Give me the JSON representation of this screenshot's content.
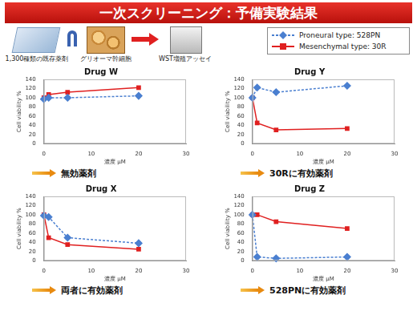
{
  "header": {
    "title": "一次スクリーニング：予備実験結果"
  },
  "flow": [
    "1,300種類の既存薬剤",
    "グリオーマ幹細胞",
    "WST増殖アッセイ"
  ],
  "chart_data": [
    {
      "type": "line",
      "title": "Drug W",
      "x_label": "濃度 μM",
      "y_label": "Cell viability %",
      "x": [
        0,
        1,
        5,
        20
      ],
      "series": [
        {
          "name": "Proneural type: 528PN",
          "color": "#4a7fd0",
          "marker": "diamond",
          "line_style": "dashed",
          "values": [
            97,
            100,
            100,
            104
          ]
        },
        {
          "name": "Mesenchymal type: 30R",
          "color": "#e02020",
          "marker": "square",
          "line_style": "solid",
          "values": [
            100,
            107,
            112,
            122
          ]
        }
      ],
      "xlim": [
        0,
        30
      ],
      "xticks": [
        0,
        10,
        20,
        30
      ],
      "ylim": [
        0,
        140
      ],
      "yticks": [
        0,
        20,
        40,
        60,
        80,
        100,
        120,
        140
      ],
      "grid": false,
      "annotations": [
        "無効薬剤"
      ]
    },
    {
      "type": "line",
      "title": "Drug Y",
      "x_label": "濃度 μM",
      "y_label": "Cell viability %",
      "x": [
        0,
        1,
        5,
        20
      ],
      "series": [
        {
          "name": "Proneural type: 528PN",
          "color": "#4a7fd0",
          "marker": "diamond",
          "line_style": "dashed",
          "values": [
            100,
            122,
            112,
            126
          ]
        },
        {
          "name": "Mesenchymal type: 30R",
          "color": "#e02020",
          "marker": "square",
          "line_style": "solid",
          "values": [
            100,
            45,
            30,
            33
          ]
        }
      ],
      "xlim": [
        0,
        30
      ],
      "xticks": [
        0,
        10,
        20,
        30
      ],
      "ylim": [
        0,
        140
      ],
      "yticks": [
        0,
        20,
        40,
        60,
        80,
        100,
        120,
        140
      ],
      "grid": false,
      "annotations": [
        "30Rに有効薬剤"
      ]
    },
    {
      "type": "line",
      "title": "Drug X",
      "x_label": "濃度 μM",
      "y_label": "Cell viability %",
      "x": [
        0,
        1,
        5,
        20
      ],
      "series": [
        {
          "name": "Proneural type: 528PN",
          "color": "#4a7fd0",
          "marker": "diamond",
          "line_style": "dashed",
          "values": [
            98,
            95,
            50,
            38
          ]
        },
        {
          "name": "Mesenchymal type: 30R",
          "color": "#e02020",
          "marker": "square",
          "line_style": "solid",
          "values": [
            100,
            50,
            35,
            25
          ]
        }
      ],
      "xlim": [
        0,
        30
      ],
      "xticks": [
        0,
        10,
        20,
        30
      ],
      "ylim": [
        0,
        140
      ],
      "yticks": [
        0,
        20,
        40,
        60,
        80,
        100,
        120,
        140
      ],
      "grid": false,
      "annotations": [
        "両者に有効薬剤"
      ]
    },
    {
      "type": "line",
      "title": "Drug Z",
      "x_label": "濃度 μM",
      "y_label": "Cell viability %",
      "x": [
        0,
        1,
        5,
        20
      ],
      "series": [
        {
          "name": "Proneural type: 528PN",
          "color": "#4a7fd0",
          "marker": "diamond",
          "line_style": "dashed",
          "values": [
            100,
            8,
            5,
            8
          ]
        },
        {
          "name": "Mesenchymal type: 30R",
          "color": "#e02020",
          "marker": "square",
          "line_style": "solid",
          "values": [
            100,
            100,
            85,
            70
          ]
        }
      ],
      "xlim": [
        0,
        30
      ],
      "xticks": [
        0,
        10,
        20,
        30
      ],
      "ylim": [
        0,
        140
      ],
      "yticks": [
        0,
        20,
        40,
        60,
        80,
        100,
        120,
        140
      ],
      "grid": false,
      "annotations": [
        "528PNに有効薬剤"
      ]
    }
  ]
}
